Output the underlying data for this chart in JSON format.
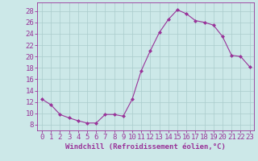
{
  "x": [
    0,
    1,
    2,
    3,
    4,
    5,
    6,
    7,
    8,
    9,
    10,
    11,
    12,
    13,
    14,
    15,
    16,
    17,
    18,
    19,
    20,
    21,
    22,
    23
  ],
  "y": [
    12.5,
    11.5,
    9.8,
    9.2,
    8.7,
    8.3,
    8.3,
    9.8,
    9.8,
    9.5,
    12.5,
    17.5,
    21.0,
    24.2,
    26.5,
    28.2,
    27.5,
    26.3,
    26.0,
    25.5,
    23.5,
    20.2,
    20.0,
    18.2
  ],
  "line_color": "#993399",
  "marker": "D",
  "marker_size": 2,
  "bg_color": "#cce8e8",
  "grid_color": "#aacccc",
  "xlabel": "Windchill (Refroidissement éolien,°C)",
  "ylabel_ticks": [
    8,
    10,
    12,
    14,
    16,
    18,
    20,
    22,
    24,
    26,
    28
  ],
  "xlim": [
    -0.5,
    23.5
  ],
  "ylim": [
    7.0,
    29.5
  ],
  "xticks": [
    0,
    1,
    2,
    3,
    4,
    5,
    6,
    7,
    8,
    9,
    10,
    11,
    12,
    13,
    14,
    15,
    16,
    17,
    18,
    19,
    20,
    21,
    22,
    23
  ],
  "xlabel_fontsize": 6.5,
  "tick_fontsize": 6.5,
  "tick_color": "#993399",
  "axis_color": "#993399"
}
